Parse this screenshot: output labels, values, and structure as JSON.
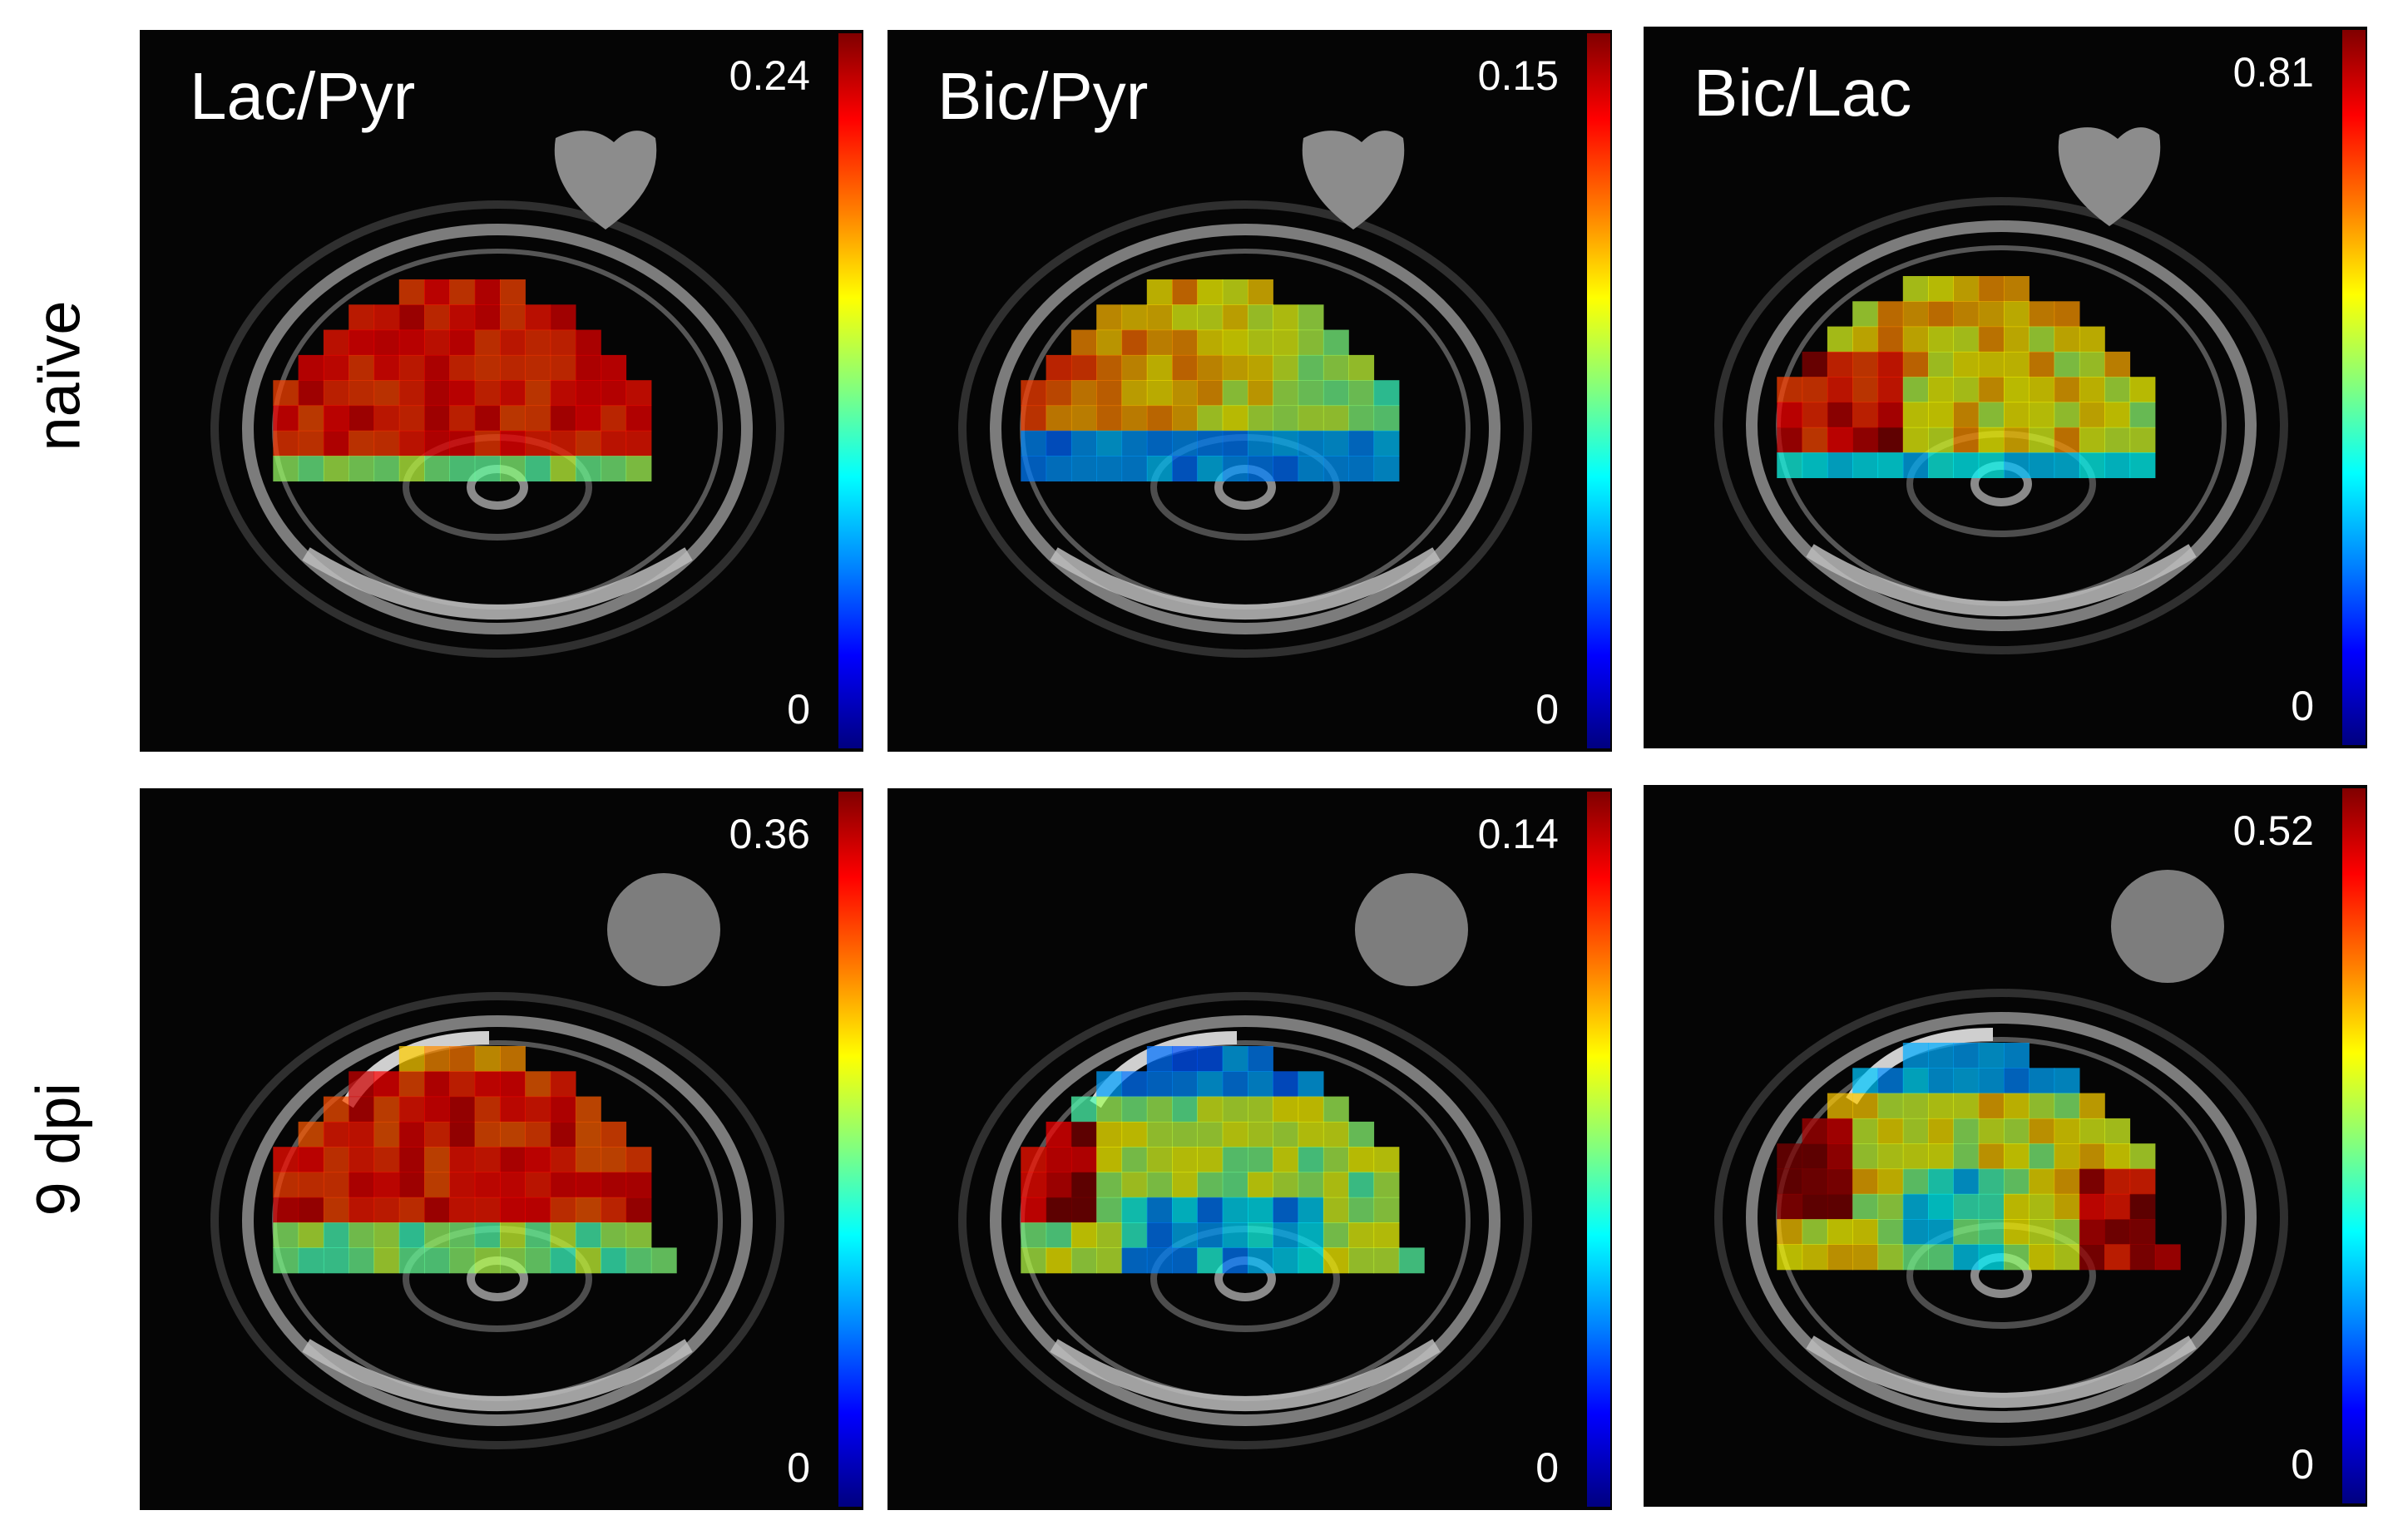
{
  "rows": [
    "naïve",
    "9 dpi"
  ],
  "columns": [
    "Lac/Pyr",
    "Bic/Pyr",
    "Bic/Lac"
  ],
  "panels": [
    {
      "row": "naïve",
      "metric": "Lac/Pyr",
      "max": "0.24",
      "min": "0",
      "dominant": "red-orange",
      "reference_shape": "heart"
    },
    {
      "row": "naïve",
      "metric": "Bic/Pyr",
      "max": "0.15",
      "min": "0",
      "dominant": "orange-green, blue inferior",
      "reference_shape": "heart"
    },
    {
      "row": "naïve",
      "metric": "Bic/Lac",
      "max": "0.81",
      "min": "0",
      "dominant": "yellow-green, red patches",
      "reference_shape": "heart"
    },
    {
      "row": "9 dpi",
      "metric": "Lac/Pyr",
      "max": "0.36",
      "min": "0",
      "dominant": "red-orange",
      "reference_shape": "circle"
    },
    {
      "row": "9 dpi",
      "metric": "Bic/Pyr",
      "max": "0.14",
      "min": "0",
      "dominant": "green-blue, red left",
      "reference_shape": "circle"
    },
    {
      "row": "9 dpi",
      "metric": "Bic/Lac",
      "max": "0.52",
      "min": "0",
      "dominant": "cyan-yellow, red left",
      "reference_shape": "circle"
    }
  ],
  "colormap": "jet",
  "colors": {
    "background": "#ffffff",
    "panel": "#050505",
    "text_on_panel": "#ffffff",
    "text_label": "#000000"
  }
}
